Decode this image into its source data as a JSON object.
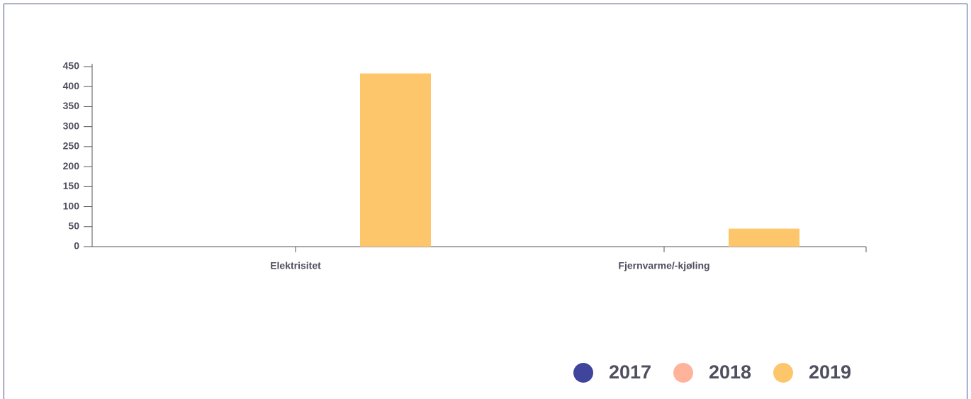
{
  "chart_data": {
    "type": "bar",
    "categories": [
      "Elektrisitet",
      "Fjernvarme/-kjøling"
    ],
    "series": [
      {
        "name": "2017",
        "color": "#3f459c",
        "values": [
          null,
          null
        ]
      },
      {
        "name": "2018",
        "color": "#ffb39b",
        "values": [
          null,
          null
        ]
      },
      {
        "name": "2019",
        "color": "#fec66a",
        "values": [
          433,
          45
        ]
      }
    ],
    "ylim": [
      0,
      450
    ],
    "yticks": [
      0,
      50,
      100,
      150,
      200,
      250,
      300,
      350,
      400,
      450
    ],
    "legend": "bottom-right"
  }
}
